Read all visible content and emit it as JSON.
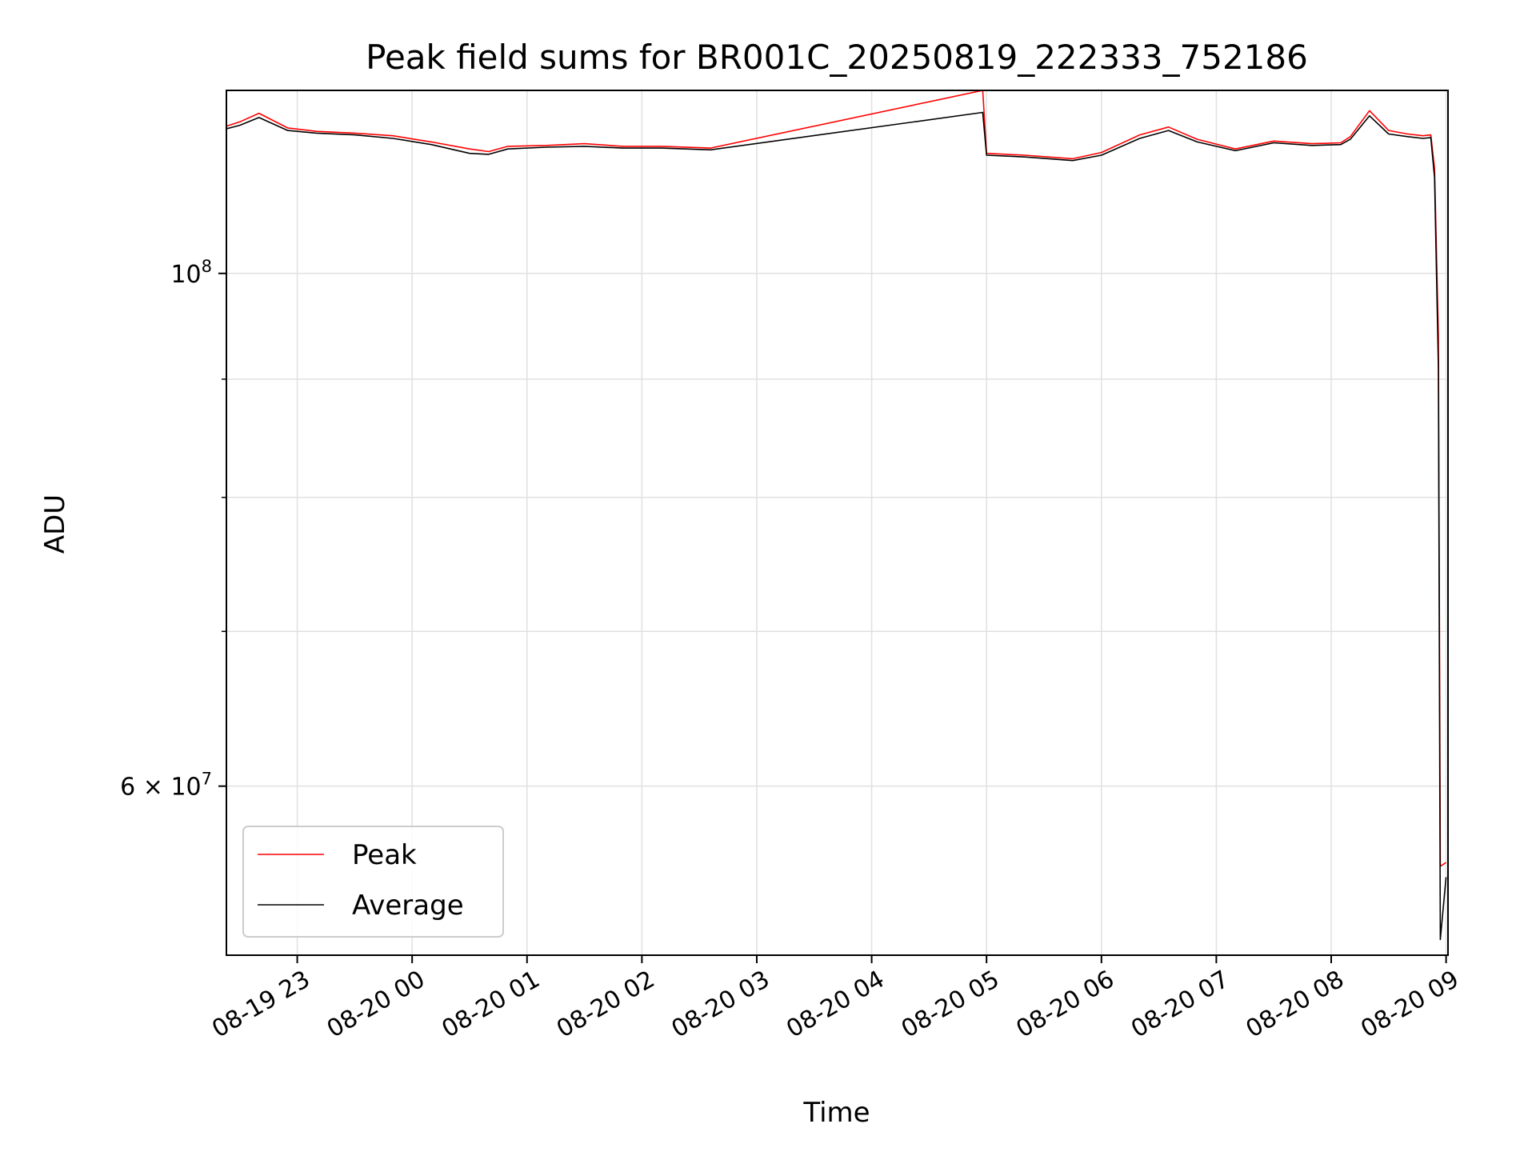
{
  "chart_data": {
    "type": "line",
    "title": "Peak field sums for BR001C_20250819_222333_752186",
    "xlabel": "Time",
    "ylabel": "ADU",
    "yscale": "log",
    "ylim": [
      50700000,
      120000000
    ],
    "xlim": [
      "2025-08-19 22:23:00",
      "2025-08-20 09:01:00"
    ],
    "grid": true,
    "legend_position": "lower-left",
    "x_ticks": [
      "08-19 23",
      "08-20 00",
      "08-20 01",
      "08-20 02",
      "08-20 03",
      "08-20 04",
      "08-20 05",
      "08-20 06",
      "08-20 07",
      "08-20 08",
      "08-20 09"
    ],
    "y_ticks": [
      {
        "value": 100000000,
        "label_base": "10",
        "label_exp": "8",
        "label_prefix": ""
      },
      {
        "value": 60000000,
        "label_base": "10",
        "label_exp": "7",
        "label_prefix": "6 × "
      }
    ],
    "y_minor_ticks": [
      70000000,
      80000000,
      90000000
    ],
    "series": [
      {
        "name": "Peak",
        "color": "#ff0000",
        "x": [
          "2025-08-19 22:23",
          "2025-08-19 22:30",
          "2025-08-19 22:40",
          "2025-08-19 22:55",
          "2025-08-19 23:10",
          "2025-08-19 23:30",
          "2025-08-19 23:50",
          "2025-08-20 00:10",
          "2025-08-20 00:30",
          "2025-08-20 00:40",
          "2025-08-20 00:50",
          "2025-08-20 01:10",
          "2025-08-20 01:30",
          "2025-08-20 01:50",
          "2025-08-20 02:10",
          "2025-08-20 02:36",
          "2025-08-20 04:58",
          "2025-08-20 05:00",
          "2025-08-20 05:20",
          "2025-08-20 05:45",
          "2025-08-20 06:00",
          "2025-08-20 06:20",
          "2025-08-20 06:35",
          "2025-08-20 06:50",
          "2025-08-20 07:10",
          "2025-08-20 07:30",
          "2025-08-20 07:50",
          "2025-08-20 08:05",
          "2025-08-20 08:10",
          "2025-08-20 08:20",
          "2025-08-20 08:30",
          "2025-08-20 08:40",
          "2025-08-20 08:48",
          "2025-08-20 08:52",
          "2025-08-20 08:54",
          "2025-08-20 08:56",
          "2025-08-20 08:57",
          "2025-08-20 09:00"
        ],
        "y": [
          115800000,
          116300000,
          117300000,
          115600000,
          115200000,
          115000000,
          114700000,
          114000000,
          113200000,
          112900000,
          113500000,
          113600000,
          113800000,
          113500000,
          113500000,
          113300000,
          120000000,
          112700000,
          112500000,
          112100000,
          112800000,
          114800000,
          115700000,
          114300000,
          113200000,
          114100000,
          113800000,
          113900000,
          114600000,
          117600000,
          115300000,
          114900000,
          114700000,
          114800000,
          111000000,
          94000000,
          55400000,
          55600000
        ]
      },
      {
        "name": "Average",
        "color": "#000000",
        "x": [
          "2025-08-19 22:23",
          "2025-08-19 22:30",
          "2025-08-19 22:40",
          "2025-08-19 22:55",
          "2025-08-19 23:10",
          "2025-08-19 23:30",
          "2025-08-19 23:50",
          "2025-08-20 00:10",
          "2025-08-20 00:30",
          "2025-08-20 00:40",
          "2025-08-20 00:50",
          "2025-08-20 01:10",
          "2025-08-20 01:30",
          "2025-08-20 01:50",
          "2025-08-20 02:10",
          "2025-08-20 02:36",
          "2025-08-20 04:58",
          "2025-08-20 05:00",
          "2025-08-20 05:20",
          "2025-08-20 05:45",
          "2025-08-20 06:00",
          "2025-08-20 06:20",
          "2025-08-20 06:35",
          "2025-08-20 06:50",
          "2025-08-20 07:10",
          "2025-08-20 07:30",
          "2025-08-20 07:50",
          "2025-08-20 08:05",
          "2025-08-20 08:10",
          "2025-08-20 08:20",
          "2025-08-20 08:30",
          "2025-08-20 08:40",
          "2025-08-20 08:48",
          "2025-08-20 08:52",
          "2025-08-20 08:54",
          "2025-08-20 08:56",
          "2025-08-20 08:57",
          "2025-08-20 09:00"
        ],
        "y": [
          115500000,
          115900000,
          116800000,
          115300000,
          115000000,
          114800000,
          114400000,
          113700000,
          112700000,
          112600000,
          113200000,
          113400000,
          113500000,
          113300000,
          113300000,
          113100000,
          117400000,
          112500000,
          112300000,
          111900000,
          112500000,
          114400000,
          115300000,
          114000000,
          113000000,
          113900000,
          113600000,
          113700000,
          114300000,
          117000000,
          114900000,
          114600000,
          114400000,
          114500000,
          110000000,
          91000000,
          51500000,
          54800000
        ]
      }
    ]
  }
}
